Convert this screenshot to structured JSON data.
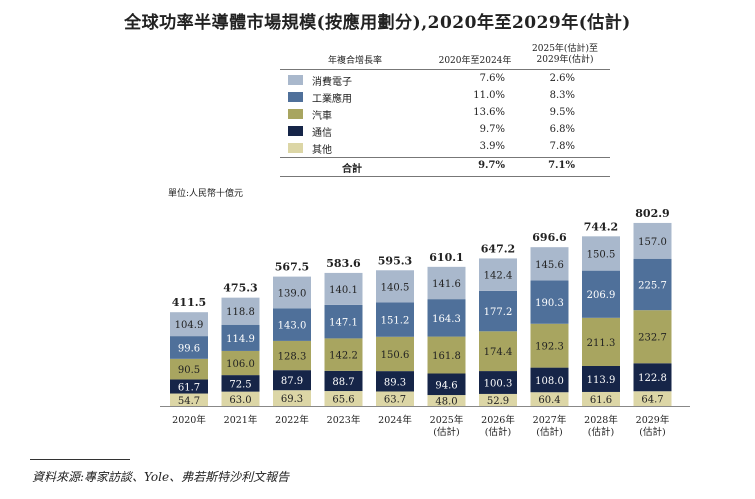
{
  "title": "全球功率半導體市場規模(按應用劃分),2020年至2029年(估計)",
  "unit_label": "單位:人民幣十億元",
  "source": "資料來源:專家訪談、Yole、弗若斯特沙利文報告",
  "cagr_table": {
    "col0_header": "年複合增長率",
    "col1_header": "2020年至2024年",
    "col2_header_line1": "2025年(估計)至",
    "col2_header_line2": "2029年(估計)",
    "rows": [
      {
        "label": "消費電子",
        "v1": "7.6%",
        "v2": "2.6%",
        "color": "#a9b8cc"
      },
      {
        "label": "工業應用",
        "v1": "11.0%",
        "v2": "8.3%",
        "color": "#4f709a"
      },
      {
        "label": "汽車",
        "v1": "13.6%",
        "v2": "9.5%",
        "color": "#a8a560"
      },
      {
        "label": "通信",
        "v1": "9.7%",
        "v2": "6.8%",
        "color": "#162548"
      },
      {
        "label": "其他",
        "v1": "3.9%",
        "v2": "7.8%",
        "color": "#dcd6a6"
      }
    ],
    "total": {
      "label": "合計",
      "v1": "9.7%",
      "v2": "7.1%"
    }
  },
  "chart_data": {
    "type": "bar",
    "stacked": true,
    "categories": [
      "2020年",
      "2021年",
      "2022年",
      "2023年",
      "2024年",
      "2025年\n(估計)",
      "2026年\n(估計)",
      "2027年\n(估計)",
      "2028年\n(估計)",
      "2029年\n(估計)"
    ],
    "series": [
      {
        "name": "其他",
        "color": "#dcd6a6",
        "values": [
          54.7,
          63.0,
          69.3,
          65.6,
          63.7,
          48.0,
          52.9,
          60.4,
          61.6,
          64.7
        ]
      },
      {
        "name": "通信",
        "color": "#162548",
        "values": [
          61.7,
          72.5,
          87.9,
          88.7,
          89.3,
          94.6,
          100.3,
          108.0,
          113.9,
          122.8
        ]
      },
      {
        "name": "汽車",
        "color": "#a8a560",
        "values": [
          90.5,
          106.0,
          128.3,
          142.2,
          150.6,
          161.8,
          174.4,
          192.3,
          211.3,
          232.7
        ]
      },
      {
        "name": "工業應用",
        "color": "#4f709a",
        "values": [
          99.6,
          114.9,
          143.0,
          147.1,
          151.2,
          164.3,
          177.2,
          190.3,
          206.9,
          225.7
        ]
      },
      {
        "name": "消費電子",
        "color": "#a9b8cc",
        "values": [
          104.9,
          118.8,
          139.0,
          140.1,
          140.5,
          141.6,
          142.4,
          145.6,
          150.5,
          157.0
        ]
      }
    ],
    "totals": [
      411.5,
      475.3,
      567.5,
      583.6,
      595.3,
      610.1,
      647.2,
      696.6,
      744.2,
      802.9
    ],
    "legend": "table-top"
  }
}
